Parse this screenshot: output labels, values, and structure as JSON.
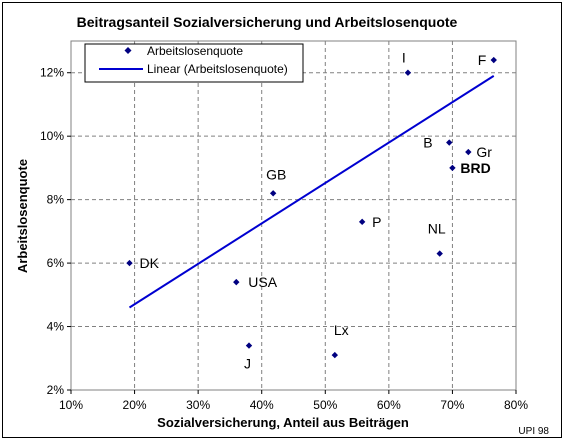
{
  "chart_data": {
    "type": "scatter",
    "title": "Beitragsanteil Sozialversicherung und Arbeitslosenquote",
    "xlabel": "Sozialversicherung, Anteil aus Beiträgen",
    "ylabel": "Arbeitslosenquote",
    "xlim": [
      10,
      80
    ],
    "ylim": [
      2,
      13
    ],
    "x_ticks": [
      10,
      20,
      30,
      40,
      50,
      60,
      70,
      80
    ],
    "y_ticks": [
      2,
      4,
      6,
      8,
      10,
      12
    ],
    "x_tick_labels": [
      "10%",
      "20%",
      "30%",
      "40%",
      "50%",
      "60%",
      "70%",
      "80%"
    ],
    "y_tick_labels": [
      "2%",
      "4%",
      "6%",
      "8%",
      "10%",
      "12%"
    ],
    "grid": true,
    "legend": {
      "position": "top-left",
      "entries": [
        "Arbeitslosenquote",
        "Linear (Arbeitslosenquote)"
      ]
    },
    "series": [
      {
        "name": "Arbeitslosenquote",
        "marker": "diamond",
        "color": "#000080",
        "points": [
          {
            "label": "DK",
            "x": 19.2,
            "y": 6.0
          },
          {
            "label": "GB",
            "x": 41.8,
            "y": 8.2
          },
          {
            "label": "USA",
            "x": 36.0,
            "y": 5.4
          },
          {
            "label": "J",
            "x": 38.0,
            "y": 3.4
          },
          {
            "label": "Lx",
            "x": 51.5,
            "y": 3.1
          },
          {
            "label": "P",
            "x": 55.8,
            "y": 7.3
          },
          {
            "label": "I",
            "x": 63.0,
            "y": 12.0
          },
          {
            "label": "B",
            "x": 69.5,
            "y": 9.8
          },
          {
            "label": "Gr",
            "x": 72.5,
            "y": 9.5
          },
          {
            "label": "BRD",
            "x": 70.0,
            "y": 9.0
          },
          {
            "label": "NL",
            "x": 68.0,
            "y": 6.3
          },
          {
            "label": "F",
            "x": 76.5,
            "y": 12.4
          }
        ]
      }
    ],
    "trendline": {
      "name": "Linear (Arbeitslosenquote)",
      "color": "#0000d0",
      "x": [
        19.2,
        76.5
      ],
      "y": [
        4.6,
        11.9
      ]
    },
    "credit": "UPI 98"
  }
}
